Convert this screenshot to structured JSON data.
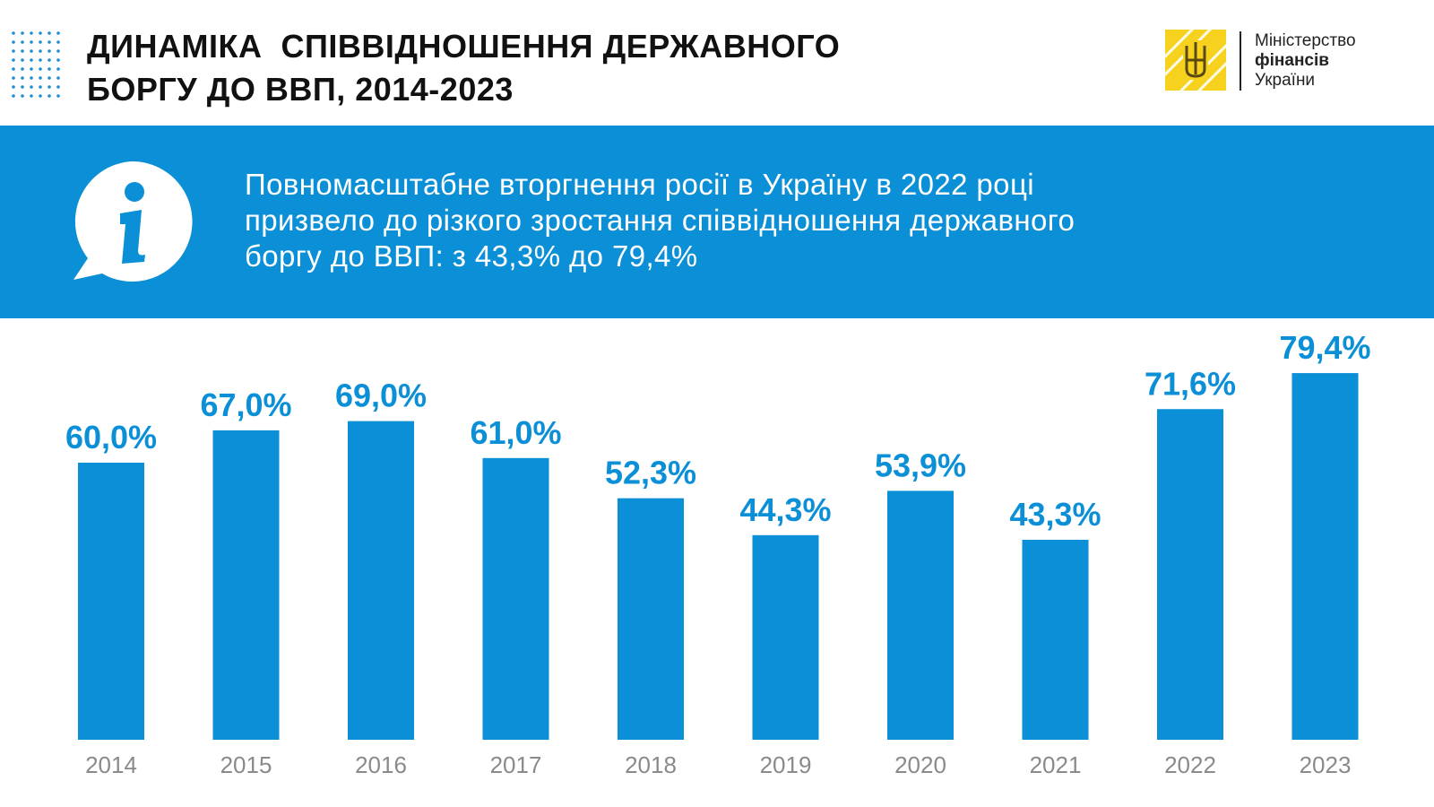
{
  "header": {
    "title_lines": [
      "ДИНАМІКА  СПІВВІДНОШЕННЯ ДЕРЖАВНОГО",
      "БОРГУ ДО ВВП, 2014-2023"
    ]
  },
  "logo": {
    "line1": "Міністерство",
    "line2": "фінансів",
    "line3": "України",
    "color": "#f6d21f",
    "icon": "trident-emblem-icon"
  },
  "banner": {
    "icon": "info-bubble-icon",
    "lines": [
      "Повномасштабне вторгнення росії в Україну в 2022 році",
      "призвело до різкого зростання співвідношення державного",
      "боргу до ВВП: з 43,3% до 79,4%"
    ],
    "color": "#0b8fd6"
  },
  "chart_data": {
    "type": "bar",
    "categories": [
      "2014",
      "2015",
      "2016",
      "2017",
      "2018",
      "2019",
      "2020",
      "2021",
      "2022",
      "2023"
    ],
    "values": [
      60.0,
      67.0,
      69.0,
      61.0,
      52.3,
      44.3,
      53.9,
      43.3,
      71.6,
      79.4
    ],
    "labels": [
      "60,0%",
      "67,0%",
      "69,0%",
      "61,0%",
      "52,3%",
      "44,3%",
      "53,9%",
      "43,3%",
      "71,6%",
      "79,4%"
    ],
    "title": "",
    "xlabel": "",
    "ylabel": "",
    "ylim": [
      0,
      80
    ],
    "grid": false,
    "legend": "none",
    "bar_color": "#0b8fd6",
    "label_color": "#0b8fd6",
    "tick_color": "#8a8a8a"
  }
}
